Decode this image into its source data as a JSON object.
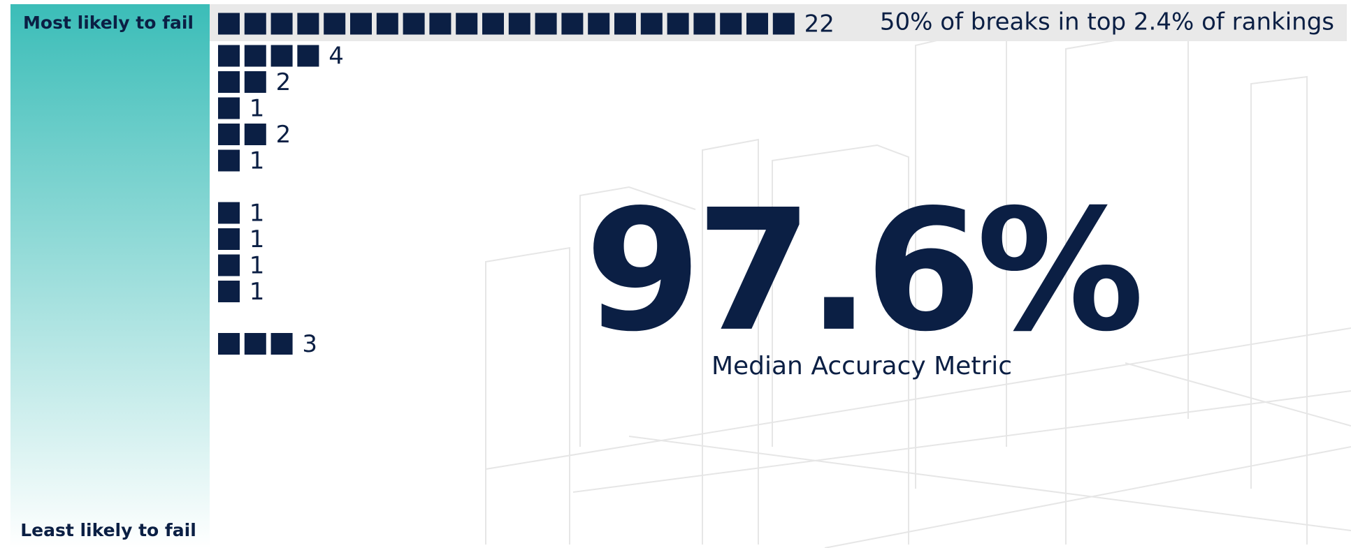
{
  "chart_data": {
    "type": "unit",
    "annotation": "50% of breaks in top 2.4% of rankings",
    "top_label": "Most likely to fail",
    "bottom_label": "Least likely to fail",
    "headline": "97.6%",
    "headline_caption": "Median Accuracy Metric",
    "values": [
      22,
      4,
      2,
      1,
      2,
      1,
      null,
      1,
      1,
      1,
      1,
      null,
      3
    ],
    "color": "#0b1f44"
  }
}
